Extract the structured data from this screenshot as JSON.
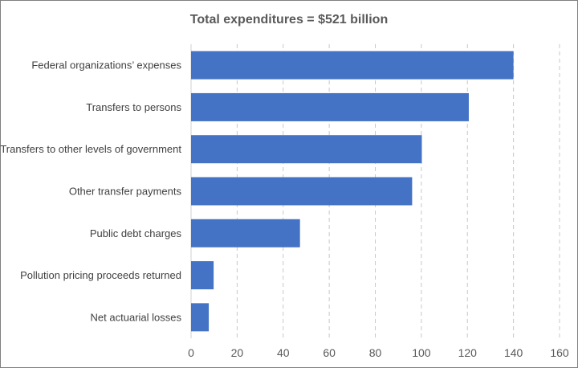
{
  "chart_data": {
    "type": "bar",
    "orientation": "horizontal",
    "title": "Total expenditures = $521 billion",
    "categories": [
      "Federal organizations’ expenses",
      "Transfers to persons",
      "Transfers to other levels of government",
      "Other transfer payments",
      "Public debt charges",
      "Pollution pricing proceeds returned",
      "Net actuarial losses"
    ],
    "values": [
      140,
      120.6,
      100.2,
      96,
      47.3,
      9.8,
      7.7
    ],
    "xlim": [
      0,
      160
    ],
    "xticks": [
      "0",
      "20",
      "40",
      "60",
      "80",
      "100",
      "120",
      "140",
      "160"
    ],
    "grid": "vertical dashed",
    "legend": "none",
    "bar_color": "#4472c4",
    "grid_color": "#c8c8c8"
  }
}
